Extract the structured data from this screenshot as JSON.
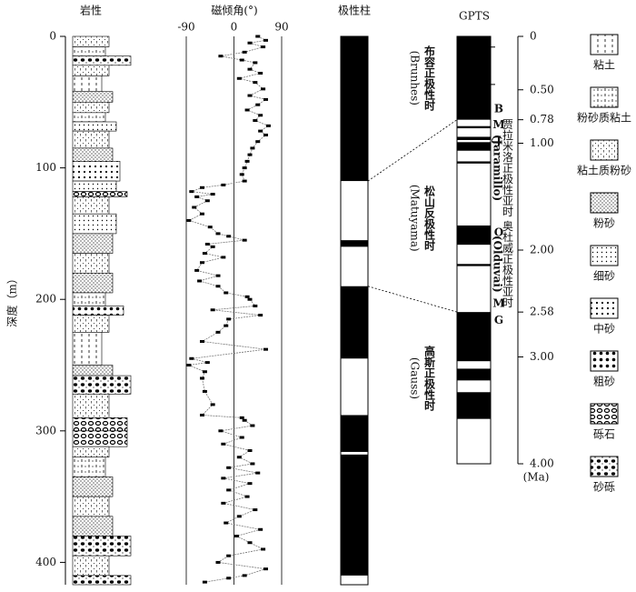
{
  "chart_data": [
    {
      "type": "lithology",
      "title": "岩性",
      "ylabel": "深度（m）",
      "ylim": [
        0,
        417
      ],
      "yticks": [
        0,
        100,
        200,
        300,
        400
      ],
      "legend": [
        "粘土",
        "粉砂质粘土",
        "粘土质粉砂",
        "粉砂",
        "细砂",
        "中砂",
        "粗砂",
        "砾石",
        "砂砾"
      ],
      "layers": [
        [
          0,
          8,
          2
        ],
        [
          8,
          15,
          1
        ],
        [
          15,
          22,
          8
        ],
        [
          22,
          30,
          2
        ],
        [
          30,
          42,
          0
        ],
        [
          42,
          50,
          3
        ],
        [
          50,
          58,
          2
        ],
        [
          58,
          65,
          1
        ],
        [
          65,
          72,
          4
        ],
        [
          72,
          85,
          2
        ],
        [
          85,
          95,
          3
        ],
        [
          95,
          110,
          5
        ],
        [
          110,
          118,
          4
        ],
        [
          118,
          122,
          7
        ],
        [
          122,
          135,
          2
        ],
        [
          135,
          150,
          4
        ],
        [
          150,
          165,
          3
        ],
        [
          165,
          180,
          2
        ],
        [
          180,
          195,
          3
        ],
        [
          195,
          205,
          1
        ],
        [
          205,
          212,
          6
        ],
        [
          212,
          225,
          2
        ],
        [
          225,
          250,
          0
        ],
        [
          250,
          258,
          3
        ],
        [
          258,
          272,
          8
        ],
        [
          272,
          290,
          2
        ],
        [
          290,
          300,
          7
        ],
        [
          300,
          312,
          7
        ],
        [
          312,
          320,
          2
        ],
        [
          320,
          335,
          1
        ],
        [
          335,
          350,
          3
        ],
        [
          350,
          365,
          2
        ],
        [
          365,
          380,
          3
        ],
        [
          380,
          395,
          8
        ],
        [
          395,
          410,
          2
        ],
        [
          410,
          417,
          8
        ]
      ]
    },
    {
      "type": "line",
      "title": "磁倾角(°)",
      "xlim": [
        -90,
        90
      ],
      "xticks": [
        -90,
        0,
        90
      ],
      "depth": [
        0,
        3,
        5,
        8,
        12,
        15,
        18,
        20,
        25,
        28,
        32,
        35,
        40,
        45,
        48,
        52,
        56,
        60,
        64,
        68,
        72,
        75,
        80,
        85,
        90,
        95,
        100,
        105,
        110,
        113,
        115,
        118,
        120,
        122,
        125,
        130,
        135,
        140,
        145,
        150,
        152,
        155,
        158,
        160,
        165,
        168,
        172,
        178,
        182,
        186,
        190,
        195,
        198,
        200,
        205,
        208,
        212,
        215,
        220,
        225,
        232,
        238,
        245,
        248,
        250,
        255,
        260,
        270,
        280,
        288,
        290,
        292,
        296,
        300,
        305,
        310,
        315,
        320,
        325,
        328,
        332,
        336,
        340,
        345,
        350,
        355,
        360,
        365,
        370,
        375,
        380,
        385,
        390,
        395,
        400,
        405,
        410,
        412,
        415
      ],
      "values": [
        45,
        60,
        30,
        55,
        20,
        -25,
        15,
        40,
        30,
        50,
        10,
        40,
        55,
        30,
        60,
        45,
        25,
        50,
        40,
        65,
        50,
        60,
        45,
        35,
        30,
        25,
        20,
        15,
        20,
        -20,
        -60,
        -80,
        -40,
        -70,
        -50,
        -75,
        -60,
        -85,
        -45,
        -30,
        -10,
        20,
        -50,
        -40,
        -55,
        -20,
        -60,
        -70,
        -30,
        -65,
        -30,
        -15,
        25,
        30,
        40,
        -40,
        50,
        -10,
        -15,
        -30,
        -60,
        60,
        -80,
        -50,
        -85,
        -55,
        -60,
        -55,
        -40,
        -60,
        15,
        20,
        35,
        -25,
        15,
        -20,
        30,
        10,
        35,
        -10,
        45,
        -20,
        30,
        -10,
        25,
        -20,
        40,
        10,
        -15,
        50,
        5,
        30,
        55,
        -10,
        -30,
        60,
        20,
        -10,
        -55
      ]
    },
    {
      "type": "polarity",
      "title": "极性柱",
      "normal": [
        [
          0,
          110
        ],
        [
          155,
          160
        ],
        [
          190,
          245
        ],
        [
          288,
          316
        ],
        [
          318,
          410
        ]
      ]
    },
    {
      "type": "gpts",
      "title": "GPTS",
      "ylabel": "(Ma)",
      "ylim": [
        0,
        4
      ],
      "yticks": [
        0,
        {
          "value": 0.5,
          "label": "0.50"
        },
        0.78,
        {
          "value": 1,
          "label": "1.00"
        },
        {
          "value": 2,
          "label": "2.00"
        },
        2.58,
        {
          "value": 3,
          "label": "3.00"
        },
        {
          "value": 4,
          "label": "4.00"
        }
      ],
      "normal": [
        [
          0,
          0.78
        ],
        [
          0.84,
          0.86
        ],
        [
          0.94,
          0.97
        ],
        [
          0.99,
          1.07
        ],
        [
          1.17,
          1.19
        ],
        [
          1.77,
          1.95
        ],
        [
          2.13,
          2.15
        ],
        [
          2.58,
          3.04
        ],
        [
          3.11,
          3.22
        ],
        [
          3.33,
          3.58
        ]
      ],
      "chrons": [
        {
          "name": "布容正极性时",
          "alias": "(Brunhes)"
        },
        {
          "name": "松山反极性时",
          "alias": "(Matuyama)"
        },
        {
          "name": "高斯正极性时",
          "alias": "(Gauss)"
        }
      ],
      "subchrons": [
        {
          "name": "贾拉米洛正极性亚时",
          "alias": "(Jaramillo)"
        },
        {
          "name": "奥杜威正极性亚时",
          "alias": "(Olduvai)"
        }
      ],
      "boundary_labels": [
        "B",
        "M",
        "J",
        "O",
        "M",
        "G"
      ],
      "correlations": [
        {
          "depth": 110,
          "age": 0.78
        },
        {
          "depth": 190,
          "age": 2.58
        }
      ]
    }
  ]
}
